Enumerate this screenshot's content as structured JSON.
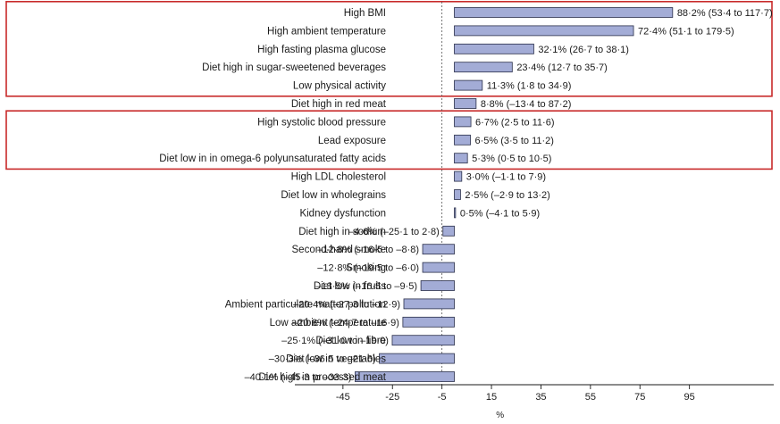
{
  "chart_data": {
    "type": "bar",
    "orientation": "horizontal",
    "xlabel": "%",
    "ylabel": "",
    "title": "",
    "xlim": [
      -55,
      115
    ],
    "xticks": [
      -45,
      -25,
      -5,
      15,
      35,
      55,
      75,
      95
    ],
    "reference_line": -5,
    "bar_color": "#a3acd6",
    "highlight_color": "#c82a2a",
    "categories": [
      "High BMI",
      "High ambient temperature",
      "High fasting plasma glucose",
      "Diet high in sugar-sweetened beverages",
      "Low physical activity",
      "Diet high in red meat",
      "High systolic blood pressure",
      "Lead exposure",
      "Diet low in in omega-6 polyunsaturated fatty acids",
      "High LDL cholesterol",
      "Diet low in wholegrains",
      "Kidney dysfunction",
      "Diet high in sodium",
      "Second-hand smoke",
      "Smoking",
      "Diet low in fruits",
      "Ambient  particulate matter pollution",
      "Low ambient temperature",
      "Diet low in fibre",
      "Diet low in vegetables",
      "Diet high in processed meat"
    ],
    "values": [
      88.2,
      72.4,
      32.1,
      23.4,
      11.3,
      8.8,
      6.7,
      6.5,
      5.3,
      3.0,
      2.5,
      0.5,
      -4.6,
      -12.8,
      -12.8,
      -13.5,
      -20.4,
      -20.8,
      -25.1,
      -30.3,
      -40.1
    ],
    "value_labels": [
      "88·2% (53·4 to 117·7)",
      "72·4% (51·1 to 179·5)",
      "32·1% (26·7 to 38·1)",
      "23·4% (12·7 to 35·7)",
      "11·3% (1·8 to 34·9)",
      "8·8% (–13·4 to 87·2)",
      "6·7% (2·5 to 11·6)",
      "6·5% (3·5 to 11·2)",
      "5·3% (0·5 to 10·5)",
      "3·0% (–1·1 to 7·9)",
      "2·5% (–2·9 to 13·2)",
      "0·5% (–4·1 to 5·9)",
      "–4·6% (–25·1 to 2·8)",
      "–12·8% (–16·5 to –8·8)",
      "–12·8% (–19·5 to –6·0)",
      "–13·5% (–16·5 to –9·5)",
      "–20·4% (–27·3 to –12·9)",
      "–20·8% (–24·7 to –16·9)",
      "–25·1% (–31·0 to –19·0)",
      "–30·3% (–36·5 to –21·6)",
      "–40·1% (–45·3 to –33·3)"
    ],
    "highlight_groups": [
      {
        "from": 0,
        "to": 4
      },
      {
        "from": 6,
        "to": 8
      }
    ]
  }
}
